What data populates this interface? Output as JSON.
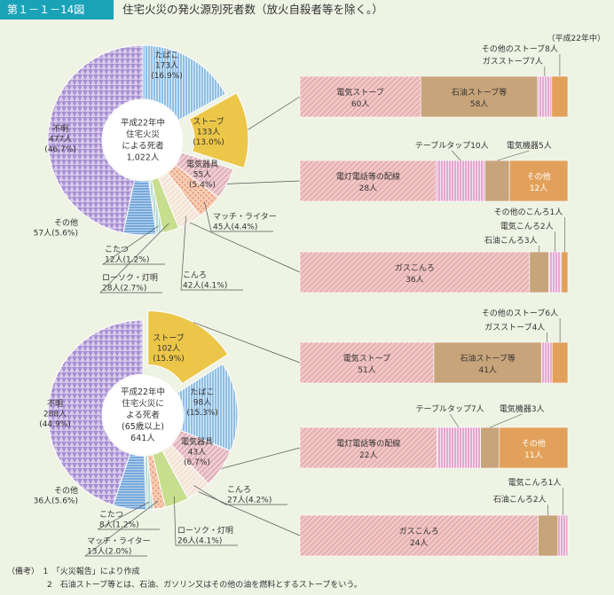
{
  "header": {
    "figure_no": "第１－１－14図",
    "title": "住宅火災の発火源別死者数（放火自殺者等を除く。）",
    "unit_note": "（平成22年中）"
  },
  "notes": [
    "（備考）　1　「火災報告」により作成",
    "　　　　　2　石油ストーブ等とは、石油、ガソリン又はその他の油を燃料とするストーブをいう。"
  ],
  "colors": {
    "tobacco": "#8fbfe6",
    "stove": "#ecc649",
    "electric": "#e3b5bd",
    "match": "#f6cdb4",
    "konro": "#f4e4d6",
    "candle": "#c6de8d",
    "kotatsu": "#b8ddd5",
    "other": "#77a9db",
    "unknown": "#a88fd2",
    "denki_stove": "#f0c6c6",
    "sekiyu": "#c8a47b",
    "gas_stove": "#e6a8d2",
    "sonota_stove": "#e2a15a",
    "cord": "#f0c6c6",
    "table_tap": "#e7a6cf",
    "kiki": "#c8a47b",
    "sonota_orange": "#e2a15a",
    "gas_konro": "#f0c6c6",
    "sekiyu_konro": "#c8a47b",
    "denki_konro": "#e6a8d2",
    "sonota_konro": "#e2a15a"
  },
  "chart_data": [
    {
      "type": "pie",
      "center_label": [
        "平成22年中",
        "住宅火災",
        "による死者",
        "1,022人"
      ],
      "slices": [
        {
          "name": "たばこ",
          "value": 173,
          "pct": 16.9,
          "count_label": "173人",
          "pct_label": "(16.9%)",
          "key": "tobacco",
          "color_key": "tobacco",
          "explode": false
        },
        {
          "name": "ストーブ",
          "value": 133,
          "pct": 13.0,
          "count_label": "133人",
          "pct_label": "(13.0%)",
          "key": "stove",
          "color_key": "stove",
          "explode": true
        },
        {
          "name": "電気器具",
          "value": 55,
          "pct": 5.4,
          "count_label": "55人",
          "pct_label": "(5.4%)",
          "key": "electric",
          "color_key": "electric",
          "explode": false
        },
        {
          "name": "マッチ・ライター",
          "value": 45,
          "pct": 4.4,
          "count_label": "45人",
          "pct_label": "(4.4%)",
          "key": "match",
          "color_key": "match",
          "explode": false
        },
        {
          "name": "こんろ",
          "value": 42,
          "pct": 4.1,
          "count_label": "42人",
          "pct_label": "(4.1%)",
          "key": "konro",
          "color_key": "konro",
          "explode": false
        },
        {
          "name": "ローソク・灯明",
          "value": 28,
          "pct": 2.7,
          "count_label": "28人",
          "pct_label": "(2.7%)",
          "key": "candle",
          "color_key": "candle",
          "explode": false
        },
        {
          "name": "こたつ",
          "value": 12,
          "pct": 1.2,
          "count_label": "12人",
          "pct_label": "(1.2%)",
          "key": "kotatsu",
          "color_key": "kotatsu",
          "explode": false
        },
        {
          "name": "その他",
          "value": 57,
          "pct": 5.6,
          "count_label": "57人",
          "pct_label": "(5.6%)",
          "key": "other",
          "color_key": "other",
          "explode": false
        },
        {
          "name": "不明",
          "value": 477,
          "pct": 46.7,
          "count_label": "477人",
          "pct_label": "(46.7%)",
          "key": "unknown",
          "color_key": "unknown",
          "explode": false
        }
      ],
      "breakdowns": [
        {
          "type": "bar",
          "source": "stove",
          "segments": [
            {
              "name": "電気ストーブ",
              "value": 60,
              "label": "電気ストーブ",
              "value_label": "60人",
              "color_key": "denki_stove"
            },
            {
              "name": "石油ストーブ等",
              "value": 58,
              "label": "石油ストーブ等",
              "value_label": "58人",
              "color_key": "sekiyu"
            },
            {
              "name": "ガスストーブ",
              "value": 7,
              "label": "ガスストーブ7人",
              "color_key": "gas_stove"
            },
            {
              "name": "その他のストーブ",
              "value": 8,
              "label": "その他のストーブ8人",
              "color_key": "sonota_stove"
            }
          ]
        },
        {
          "type": "bar",
          "source": "electric",
          "segments": [
            {
              "name": "電灯電話等の配線",
              "value": 28,
              "label": "電灯電話等の配線",
              "value_label": "28人",
              "color_key": "cord"
            },
            {
              "name": "テーブルタップ",
              "value": 10,
              "label": "テーブルタップ10人",
              "color_key": "table_tap"
            },
            {
              "name": "電気機器",
              "value": 5,
              "label": "電気機器5人",
              "color_key": "kiki"
            },
            {
              "name": "その他",
              "value": 12,
              "label": "その他",
              "value_label": "12人",
              "color_key": "sonota_orange"
            }
          ]
        },
        {
          "type": "bar",
          "source": "konro",
          "segments": [
            {
              "name": "ガスこんろ",
              "value": 36,
              "label": "ガスこんろ",
              "value_label": "36人",
              "color_key": "gas_konro"
            },
            {
              "name": "石油こんろ",
              "value": 3,
              "label": "石油こんろ3人",
              "color_key": "sekiyu_konro"
            },
            {
              "name": "電気こんろ",
              "value": 2,
              "label": "電気こんろ2人",
              "color_key": "denki_konro"
            },
            {
              "name": "その他のこんろ",
              "value": 1,
              "label": "その他のこんろ1人",
              "color_key": "sonota_konro"
            }
          ]
        }
      ]
    },
    {
      "type": "pie",
      "center_label": [
        "平成22年中",
        "住宅火災に",
        "よる死者",
        "(65歳以上)",
        "641人"
      ],
      "slices": [
        {
          "name": "ストーブ",
          "value": 102,
          "pct": 15.9,
          "count_label": "102人",
          "pct_label": "(15.9%)",
          "key": "stove",
          "color_key": "stove",
          "explode": true
        },
        {
          "name": "たばこ",
          "value": 98,
          "pct": 15.3,
          "count_label": "98人",
          "pct_label": "(15.3%)",
          "key": "tobacco",
          "color_key": "tobacco",
          "explode": false
        },
        {
          "name": "電気器具",
          "value": 43,
          "pct": 6.7,
          "count_label": "43人",
          "pct_label": "(6.7%)",
          "key": "electric",
          "color_key": "electric",
          "explode": false
        },
        {
          "name": "こんろ",
          "value": 27,
          "pct": 4.2,
          "count_label": "27人",
          "pct_label": "(4.2%)",
          "key": "konro",
          "color_key": "konro",
          "explode": false
        },
        {
          "name": "ローソク・灯明",
          "value": 26,
          "pct": 4.1,
          "count_label": "26人",
          "pct_label": "(4.1%)",
          "key": "candle",
          "color_key": "candle",
          "explode": false
        },
        {
          "name": "マッチ・ライター",
          "value": 13,
          "pct": 2.0,
          "count_label": "13人",
          "pct_label": "(2.0%)",
          "key": "match",
          "color_key": "match",
          "explode": false
        },
        {
          "name": "こたつ",
          "value": 8,
          "pct": 1.2,
          "count_label": "8人",
          "pct_label": "(1.2%)",
          "key": "kotatsu",
          "color_key": "kotatsu",
          "explode": false
        },
        {
          "name": "その他",
          "value": 36,
          "pct": 5.6,
          "count_label": "36人",
          "pct_label": "(5.6%)",
          "key": "other",
          "color_key": "other",
          "explode": false
        },
        {
          "name": "不明",
          "value": 288,
          "pct": 44.9,
          "count_label": "288人",
          "pct_label": "(44.9%)",
          "key": "unknown",
          "color_key": "unknown",
          "explode": false
        }
      ],
      "breakdowns": [
        {
          "type": "bar",
          "source": "stove",
          "segments": [
            {
              "name": "電気ストーブ",
              "value": 51,
              "label": "電気ストーブ",
              "value_label": "51人",
              "color_key": "denki_stove"
            },
            {
              "name": "石油ストーブ等",
              "value": 41,
              "label": "石油ストーブ等",
              "value_label": "41人",
              "color_key": "sekiyu"
            },
            {
              "name": "ガスストーブ",
              "value": 4,
              "label": "ガスストーブ4人",
              "color_key": "gas_stove"
            },
            {
              "name": "その他のストーブ",
              "value": 6,
              "label": "その他のストーブ6人",
              "color_key": "sonota_stove"
            }
          ]
        },
        {
          "type": "bar",
          "source": "electric",
          "segments": [
            {
              "name": "電灯電話等の配線",
              "value": 22,
              "label": "電灯電話等の配線",
              "value_label": "22人",
              "color_key": "cord"
            },
            {
              "name": "テーブルタップ",
              "value": 7,
              "label": "テーブルタップ7人",
              "color_key": "table_tap"
            },
            {
              "name": "電気機器",
              "value": 3,
              "label": "電気機器3人",
              "color_key": "kiki"
            },
            {
              "name": "その他",
              "value": 11,
              "label": "その他",
              "value_label": "11人",
              "color_key": "sonota_orange"
            }
          ]
        },
        {
          "type": "bar",
          "source": "konro",
          "segments": [
            {
              "name": "ガスこんろ",
              "value": 24,
              "label": "ガスこんろ",
              "value_label": "24人",
              "color_key": "gas_konro"
            },
            {
              "name": "石油こんろ",
              "value": 2,
              "label": "石油こんろ2人",
              "color_key": "sekiyu_konro"
            },
            {
              "name": "電気こんろ",
              "value": 1,
              "label": "電気こんろ1人",
              "color_key": "denki_konro"
            }
          ]
        }
      ]
    }
  ]
}
